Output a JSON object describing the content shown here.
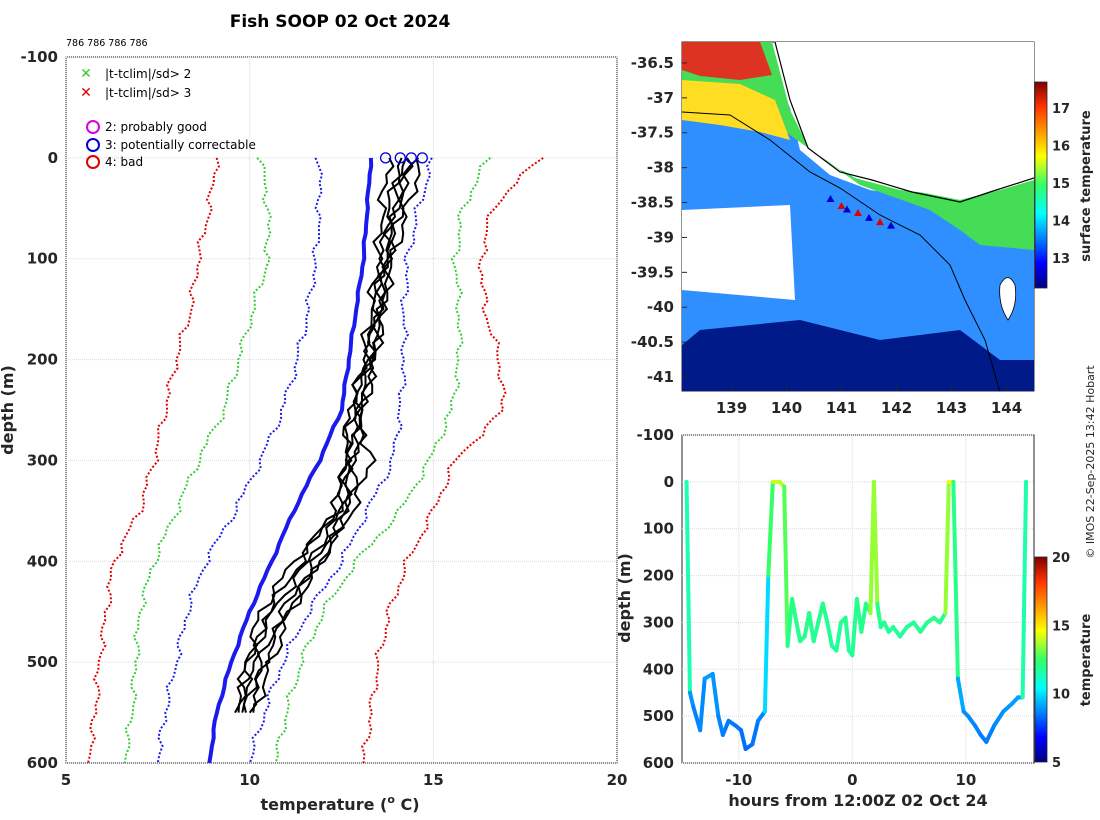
{
  "figure": {
    "title": "Fish SOOP 02 Oct 2024",
    "ids_label": "786 786 786 786",
    "copyright": "© IMOS 22-Sep-2025 13:42 Hobart"
  },
  "legend": {
    "items": [
      {
        "marker": "x",
        "color": "#33cc33",
        "label": "|t-tclim|/sd> 2"
      },
      {
        "marker": "x",
        "color": "#e00000",
        "label": "|t-tclim|/sd> 3"
      },
      {
        "marker": "o",
        "color": "#dd00dd",
        "label": "2: probably good"
      },
      {
        "marker": "o",
        "color": "#0000dd",
        "label": "3: potentially correctable"
      },
      {
        "marker": "o",
        "color": "#e00000",
        "label": "4: bad"
      }
    ]
  },
  "colors": {
    "red": "#e00000",
    "green": "#33cc33",
    "blue": "#1a1aee",
    "black": "#000000",
    "land": "#ffffff",
    "grid": "#d9d9d9"
  },
  "chart_data": [
    {
      "type": "line",
      "name": "profiles",
      "title": "Fish SOOP 02 Oct 2024",
      "xlabel": "temperature (",
      "xlabel_sup": "o",
      "xlabel_end": " C)",
      "ylabel": "depth (m)",
      "xlim": [
        5,
        20
      ],
      "ylim": [
        -100,
        600
      ],
      "xticks": [
        "5",
        "10",
        "15",
        "20"
      ],
      "yticks": [
        "-100",
        "0",
        "100",
        "200",
        "300",
        "400",
        "500",
        "600"
      ],
      "depth": [
        0,
        50,
        100,
        150,
        200,
        250,
        300,
        350,
        400,
        450,
        500,
        550,
        600
      ],
      "climatology": [
        {
          "name": "-3sd",
          "color": "red",
          "values": [
            9.1,
            8.9,
            8.6,
            8.4,
            8.0,
            7.7,
            7.4,
            7.0,
            6.3,
            6.1,
            5.9,
            5.8,
            5.6
          ]
        },
        {
          "name": "-2sd",
          "color": "green",
          "values": [
            10.3,
            10.5,
            10.5,
            10.1,
            9.7,
            9.3,
            8.6,
            8.0,
            7.4,
            7.0,
            6.9,
            6.8,
            6.6
          ]
        },
        {
          "name": "-1sd",
          "color": "blue",
          "values": [
            11.9,
            11.9,
            11.8,
            11.6,
            11.3,
            10.9,
            10.3,
            9.6,
            8.8,
            8.3,
            8.0,
            7.7,
            7.5
          ]
        },
        {
          "name": "+1sd",
          "color": "blue",
          "values": [
            15.0,
            14.6,
            14.3,
            14.2,
            14.2,
            14.1,
            13.9,
            13.2,
            12.5,
            11.6,
            10.9,
            10.4,
            10.0
          ]
        },
        {
          "name": "+2sd",
          "color": "green",
          "values": [
            16.5,
            15.8,
            15.6,
            15.7,
            15.7,
            15.5,
            14.9,
            14.1,
            12.9,
            12.0,
            11.4,
            11.0,
            10.7
          ]
        },
        {
          "name": "+3sd",
          "color": "red",
          "values": [
            17.9,
            16.6,
            16.3,
            16.4,
            16.8,
            16.9,
            15.6,
            15.0,
            14.3,
            13.8,
            13.5,
            13.3,
            13.1
          ]
        }
      ],
      "mean_profile": {
        "color": "blue",
        "values": [
          13.3,
          13.2,
          13.1,
          12.9,
          12.7,
          12.5,
          11.9,
          11.2,
          10.6,
          10.0,
          9.5,
          9.1,
          8.9
        ]
      },
      "observed_profiles": [
        {
          "values": [
            13.8,
            13.6,
            13.5,
            13.3,
            13.1,
            12.8,
            12.6,
            12.4,
            11.2,
            10.3,
            9.9,
            9.7
          ]
        },
        {
          "values": [
            14.2,
            13.9,
            13.7,
            13.6,
            13.3,
            13.0,
            12.8,
            12.5,
            11.6,
            10.6,
            10.0,
            9.8
          ]
        },
        {
          "values": [
            14.5,
            14.0,
            13.8,
            13.6,
            13.4,
            13.1,
            12.9,
            12.7,
            11.8,
            10.9,
            10.3,
            9.9
          ]
        },
        {
          "values": [
            14.7,
            14.3,
            13.9,
            13.6,
            13.4,
            13.0,
            12.7,
            12.3,
            11.4,
            10.5,
            10.1,
            9.6
          ]
        },
        {
          "values": [
            14.1,
            13.8,
            13.6,
            13.4,
            13.2,
            12.9,
            13.3,
            12.8,
            11.9,
            11.0,
            10.4,
            10.0
          ]
        },
        {
          "values": [
            14.3,
            14.1,
            13.7,
            13.5,
            13.2,
            12.7,
            12.6,
            12.6,
            12.0,
            11.1,
            10.6,
            10.1
          ]
        }
      ],
      "surface_qc_markers": {
        "color": "blue",
        "temperatures": [
          13.7,
          14.1,
          14.4,
          14.7
        ]
      }
    },
    {
      "type": "heatmap",
      "name": "sst_map",
      "colorbar_label": "surface temperature",
      "colorbar_ticks": [
        "13",
        "14",
        "15",
        "16",
        "17"
      ],
      "colorbar_range": [
        12.2,
        17.7
      ],
      "xticks": [
        "139",
        "140",
        "141",
        "142",
        "143",
        "144"
      ],
      "yticks": [
        "-36.5",
        "-37",
        "-37.5",
        "-38",
        "-38.5",
        "-39",
        "-39.5",
        "-40",
        "-40.5",
        "-41"
      ],
      "lon_range": [
        138.1,
        144.5
      ],
      "lat_range": [
        -41.2,
        -36.2
      ],
      "track": {
        "lon": [
          140.8,
          141.0,
          141.1,
          141.3,
          141.5,
          141.7,
          141.9
        ],
        "lat": [
          -38.45,
          -38.55,
          -38.6,
          -38.65,
          -38.72,
          -38.78,
          -38.83
        ]
      }
    },
    {
      "type": "line",
      "name": "depth_time",
      "xlabel": "hours from 12:00Z 02 Oct 24",
      "ylabel": "depth (m)",
      "xlim": [
        -15,
        16
      ],
      "ylim": [
        -100,
        600
      ],
      "xticks": [
        "-10",
        "0",
        "10"
      ],
      "yticks": [
        "-100",
        "0",
        "100",
        "200",
        "300",
        "400",
        "500",
        "600"
      ],
      "colorbar_label": "temperature",
      "colorbar_ticks": [
        "5",
        "10",
        "15",
        "20"
      ],
      "colorbar_range": [
        5,
        20
      ],
      "hours": [
        -14.6,
        -14.3,
        -14.0,
        -13.4,
        -13.0,
        -12.3,
        -11.8,
        -11.4,
        -10.9,
        -10.3,
        -9.8,
        -9.4,
        -8.8,
        -8.3,
        -7.7,
        -7.4,
        -7.0,
        -6.4,
        -6.0,
        -5.7,
        -5.3,
        -5.0,
        -4.6,
        -4.2,
        -3.8,
        -3.4,
        -3.0,
        -2.6,
        -2.2,
        -1.8,
        -1.4,
        -1.0,
        -0.6,
        -0.3,
        0.0,
        0.4,
        0.8,
        1.2,
        1.6,
        1.9,
        2.2,
        2.5,
        2.8,
        3.2,
        3.6,
        4.2,
        4.8,
        5.4,
        6.0,
        6.6,
        7.2,
        7.7,
        8.2,
        8.5,
        8.9,
        9.3,
        9.8,
        10.2,
        10.8,
        11.3,
        11.8,
        12.5,
        13.3,
        14.0,
        14.6,
        15.0,
        15.3
      ],
      "depth": [
        0,
        450,
        480,
        530,
        420,
        410,
        500,
        540,
        510,
        520,
        530,
        570,
        560,
        510,
        490,
        200,
        0,
        0,
        10,
        350,
        250,
        290,
        340,
        330,
        280,
        340,
        300,
        260,
        300,
        350,
        360,
        300,
        290,
        360,
        370,
        250,
        320,
        260,
        280,
        0,
        260,
        310,
        300,
        320,
        310,
        330,
        310,
        300,
        320,
        300,
        290,
        300,
        280,
        0,
        0,
        420,
        490,
        500,
        520,
        540,
        555,
        520,
        490,
        475,
        460,
        460,
        0
      ],
      "temperature": [
        14,
        9,
        8.8,
        8.5,
        9,
        9,
        8.8,
        8.5,
        8.6,
        8.5,
        8.5,
        8.3,
        8.3,
        8.6,
        8.8,
        11,
        14,
        14,
        13.8,
        11.8,
        12.2,
        12.0,
        11.9,
        11.9,
        12.1,
        11.8,
        11.9,
        12.0,
        11.9,
        11.7,
        11.6,
        12.0,
        12.1,
        11.6,
        11.5,
        12.2,
        11.8,
        12.1,
        12.0,
        15,
        12.1,
        11.9,
        11.9,
        11.8,
        11.9,
        11.7,
        11.8,
        11.9,
        11.8,
        11.9,
        12.0,
        11.9,
        12.0,
        15,
        14.5,
        9.5,
        8.9,
        8.8,
        8.7,
        8.6,
        8.5,
        8.7,
        8.9,
        9.0,
        9.1,
        9.1,
        14
      ]
    }
  ]
}
